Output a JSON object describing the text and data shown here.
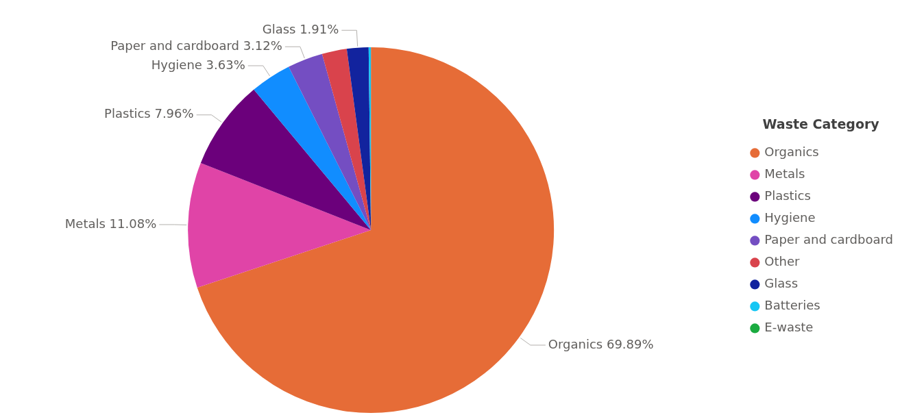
{
  "chart_data": {
    "type": "pie",
    "legend_title": "Waste Category",
    "legend": "right",
    "categories": [
      "Organics",
      "Metals",
      "Plastics",
      "Hygiene",
      "Paper and cardboard",
      "Other",
      "Glass",
      "Batteries",
      "E-waste"
    ],
    "values": [
      69.89,
      11.08,
      7.96,
      3.63,
      3.12,
      2.19,
      1.91,
      0.2,
      null
    ],
    "colors": [
      "#e66c37",
      "#e044a7",
      "#6b007b",
      "#118dff",
      "#744ec2",
      "#d9434c",
      "#12239e",
      "#15c6f4",
      "#1aab40"
    ],
    "value_labels": [
      "69.89%",
      "11.08%",
      "7.96%",
      "3.63%",
      "3.12%",
      null,
      "1.91%",
      null,
      null
    ]
  }
}
